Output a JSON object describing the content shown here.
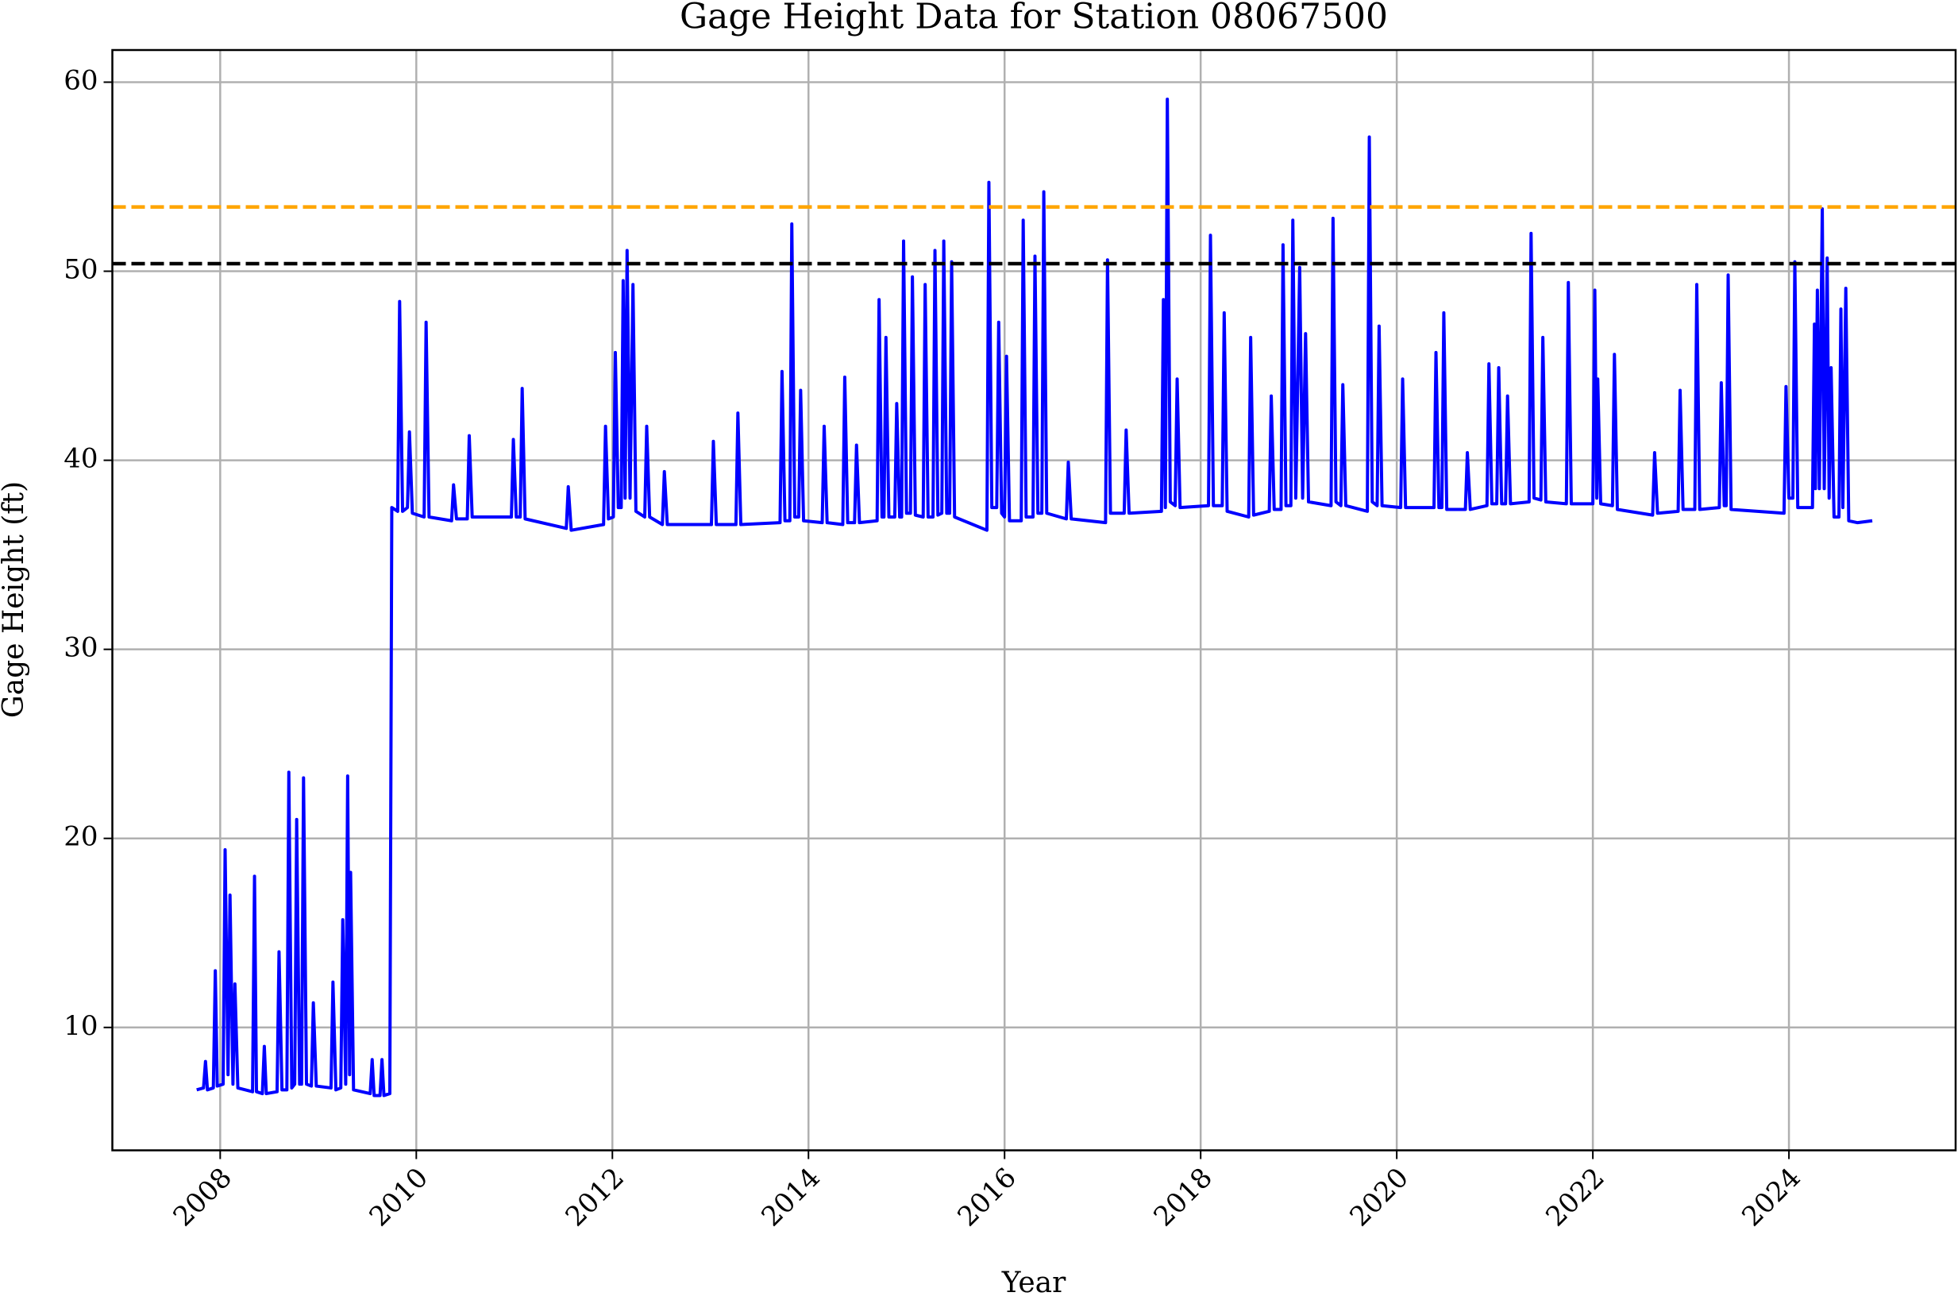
{
  "chart_data": {
    "type": "line",
    "title": "Gage Height Data for Station 08067500",
    "xlabel": "Year",
    "ylabel": "Gage Height (ft)",
    "color": "blue",
    "grid": true,
    "xlim": [
      2006.9,
      2025.7
    ],
    "ylim": [
      3.5,
      61.7
    ],
    "xticks": [
      2008,
      2010,
      2012,
      2014,
      2016,
      2018,
      2020,
      2022,
      2024
    ],
    "yticks": [
      10,
      20,
      30,
      40,
      50,
      60
    ],
    "hlines": [
      {
        "value": 53.4,
        "color": "orange"
      },
      {
        "value": 50.4,
        "color": "black"
      }
    ],
    "x": [
      2007.76,
      2007.83,
      2007.85,
      2007.87,
      2007.93,
      2007.95,
      2007.97,
      2008.03,
      2008.05,
      2008.08,
      2008.1,
      2008.13,
      2008.15,
      2008.18,
      2008.33,
      2008.35,
      2008.37,
      2008.43,
      2008.45,
      2008.47,
      2008.58,
      2008.6,
      2008.63,
      2008.68,
      2008.7,
      2008.73,
      2008.76,
      2008.78,
      2008.81,
      2008.83,
      2008.85,
      2008.88,
      2008.93,
      2008.95,
      2008.98,
      2009.13,
      2009.15,
      2009.18,
      2009.23,
      2009.25,
      2009.28,
      2009.3,
      2009.32,
      2009.33,
      2009.36,
      2009.53,
      2009.55,
      2009.57,
      2009.63,
      2009.65,
      2009.67,
      2009.73,
      2009.75,
      2009.81,
      2009.83,
      2009.86,
      2009.91,
      2009.93,
      2009.96,
      2010.08,
      2010.1,
      2010.13,
      2010.36,
      2010.38,
      2010.41,
      2010.52,
      2010.54,
      2010.57,
      2010.97,
      2010.99,
      2011.02,
      2011.06,
      2011.08,
      2011.11,
      2011.53,
      2011.55,
      2011.58,
      2011.91,
      2011.93,
      2011.96,
      2012.01,
      2012.03,
      2012.06,
      2012.09,
      2012.11,
      2012.13,
      2012.15,
      2012.18,
      2012.21,
      2012.24,
      2012.33,
      2012.35,
      2012.38,
      2012.51,
      2012.53,
      2012.56,
      2013.01,
      2013.03,
      2013.06,
      2013.26,
      2013.28,
      2013.31,
      2013.71,
      2013.73,
      2013.76,
      2013.81,
      2013.83,
      2013.86,
      2013.9,
      2013.92,
      2013.95,
      2014.14,
      2014.16,
      2014.19,
      2014.35,
      2014.37,
      2014.4,
      2014.47,
      2014.49,
      2014.52,
      2014.7,
      2014.72,
      2014.75,
      2014.77,
      2014.79,
      2014.82,
      2014.88,
      2014.9,
      2014.93,
      2014.95,
      2014.97,
      2015.0,
      2015.04,
      2015.06,
      2015.09,
      2015.17,
      2015.19,
      2015.22,
      2015.27,
      2015.29,
      2015.32,
      2015.36,
      2015.38,
      2015.41,
      2015.44,
      2015.46,
      2015.49,
      2015.82,
      2015.84,
      2015.87,
      2015.92,
      2015.94,
      2015.97,
      2016.0,
      2016.02,
      2016.05,
      2016.17,
      2016.19,
      2016.22,
      2016.29,
      2016.31,
      2016.34,
      2016.38,
      2016.4,
      2016.43,
      2016.63,
      2016.65,
      2016.68,
      2017.03,
      2017.05,
      2017.08,
      2017.22,
      2017.24,
      2017.27,
      2017.6,
      2017.62,
      2017.64,
      2017.66,
      2017.69,
      2017.74,
      2017.76,
      2017.79,
      2018.08,
      2018.1,
      2018.13,
      2018.22,
      2018.24,
      2018.27,
      2018.49,
      2018.51,
      2018.54,
      2018.7,
      2018.72,
      2018.75,
      2018.82,
      2018.84,
      2018.87,
      2018.92,
      2018.94,
      2018.97,
      2019.01,
      2019.04,
      2019.07,
      2019.1,
      2019.33,
      2019.35,
      2019.38,
      2019.43,
      2019.45,
      2019.48,
      2019.7,
      2019.72,
      2019.75,
      2019.8,
      2019.82,
      2019.85,
      2020.04,
      2020.06,
      2020.09,
      2020.38,
      2020.4,
      2020.43,
      2020.46,
      2020.48,
      2020.51,
      2020.7,
      2020.72,
      2020.75,
      2020.92,
      2020.94,
      2020.97,
      2021.02,
      2021.04,
      2021.07,
      2021.11,
      2021.13,
      2021.16,
      2021.35,
      2021.37,
      2021.4,
      2021.47,
      2021.49,
      2021.52,
      2021.73,
      2021.75,
      2021.78,
      2022.0,
      2022.02,
      2022.04,
      2022.05,
      2022.08,
      2022.2,
      2022.22,
      2022.25,
      2022.61,
      2022.63,
      2022.66,
      2022.87,
      2022.89,
      2022.92,
      2023.04,
      2023.06,
      2023.09,
      2023.29,
      2023.31,
      2023.34,
      2023.36,
      2023.38,
      2023.41,
      2023.95,
      2023.97,
      2024.0,
      2024.04,
      2024.06,
      2024.09,
      2024.24,
      2024.26,
      2024.27,
      2024.29,
      2024.31,
      2024.34,
      2024.36,
      2024.39,
      2024.41,
      2024.43,
      2024.46,
      2024.51,
      2024.53,
      2024.55,
      2024.58,
      2024.61,
      2024.7,
      2024.85
    ],
    "values": [
      6.7,
      6.8,
      8.2,
      6.7,
      6.8,
      13.0,
      6.9,
      7.0,
      19.4,
      7.5,
      17.0,
      7.0,
      12.3,
      6.8,
      6.6,
      18.0,
      6.6,
      6.5,
      9.0,
      6.5,
      6.6,
      14.0,
      6.7,
      6.7,
      23.5,
      6.8,
      7.0,
      21.0,
      7.0,
      7.0,
      23.2,
      7.0,
      6.9,
      11.3,
      6.9,
      6.8,
      12.4,
      6.7,
      6.8,
      15.7,
      7.0,
      23.3,
      7.5,
      18.2,
      6.7,
      6.5,
      8.3,
      6.4,
      6.4,
      8.3,
      6.4,
      6.5,
      37.5,
      37.3,
      48.4,
      37.3,
      37.5,
      41.5,
      37.2,
      37.0,
      47.3,
      37.0,
      36.8,
      38.7,
      36.9,
      36.9,
      41.3,
      37.0,
      37.0,
      41.1,
      37.0,
      37.0,
      43.8,
      36.9,
      36.4,
      38.6,
      36.3,
      36.6,
      41.8,
      36.9,
      37.0,
      45.7,
      37.5,
      37.5,
      49.5,
      38.0,
      51.1,
      38.0,
      49.3,
      37.3,
      37.0,
      41.8,
      37.0,
      36.6,
      39.4,
      36.6,
      36.6,
      41.0,
      36.6,
      36.6,
      42.5,
      36.6,
      36.7,
      44.7,
      36.8,
      36.8,
      52.5,
      37.0,
      37.0,
      43.7,
      36.8,
      36.7,
      41.8,
      36.7,
      36.6,
      44.4,
      36.7,
      36.7,
      40.8,
      36.7,
      36.8,
      48.5,
      37.0,
      37.0,
      46.5,
      37.0,
      37.0,
      43.0,
      37.0,
      37.0,
      51.6,
      37.2,
      37.2,
      49.7,
      37.1,
      37.0,
      49.3,
      37.0,
      37.0,
      51.1,
      37.1,
      37.2,
      51.6,
      37.2,
      37.2,
      50.5,
      37.0,
      36.3,
      54.7,
      37.5,
      37.5,
      47.3,
      37.2,
      37.0,
      45.5,
      36.8,
      36.8,
      52.7,
      37.0,
      37.0,
      50.8,
      37.2,
      37.2,
      54.2,
      37.2,
      36.9,
      39.9,
      36.9,
      36.7,
      50.6,
      37.2,
      37.2,
      41.6,
      37.2,
      37.3,
      48.5,
      37.5,
      59.1,
      37.8,
      37.6,
      44.3,
      37.5,
      37.6,
      51.9,
      37.6,
      37.6,
      47.8,
      37.3,
      37.0,
      46.5,
      37.1,
      37.3,
      43.4,
      37.4,
      37.4,
      51.4,
      37.6,
      37.6,
      52.7,
      38.0,
      50.2,
      38.0,
      46.7,
      37.8,
      37.6,
      52.8,
      37.8,
      37.6,
      44.0,
      37.6,
      37.3,
      57.1,
      37.8,
      37.6,
      47.1,
      37.6,
      37.5,
      44.3,
      37.5,
      37.5,
      45.7,
      37.5,
      37.5,
      47.8,
      37.4,
      37.4,
      40.4,
      37.4,
      37.6,
      45.1,
      37.7,
      37.7,
      44.9,
      37.7,
      37.7,
      43.4,
      37.7,
      37.8,
      52.0,
      38.0,
      37.9,
      46.5,
      37.8,
      37.7,
      49.4,
      37.7,
      37.7,
      49.0,
      38.0,
      44.3,
      37.7,
      37.6,
      45.6,
      37.4,
      37.1,
      40.4,
      37.2,
      37.3,
      43.7,
      37.4,
      37.4,
      49.3,
      37.4,
      37.5,
      44.1,
      37.6,
      37.6,
      49.8,
      37.4,
      37.2,
      43.9,
      38.0,
      38.0,
      50.5,
      37.5,
      37.5,
      47.2,
      38.5,
      49.0,
      38.5,
      53.3,
      38.5,
      50.7,
      38.0,
      44.9,
      37.0,
      37.0,
      48.0,
      37.5,
      49.1,
      36.8,
      36.7,
      36.8
    ]
  }
}
